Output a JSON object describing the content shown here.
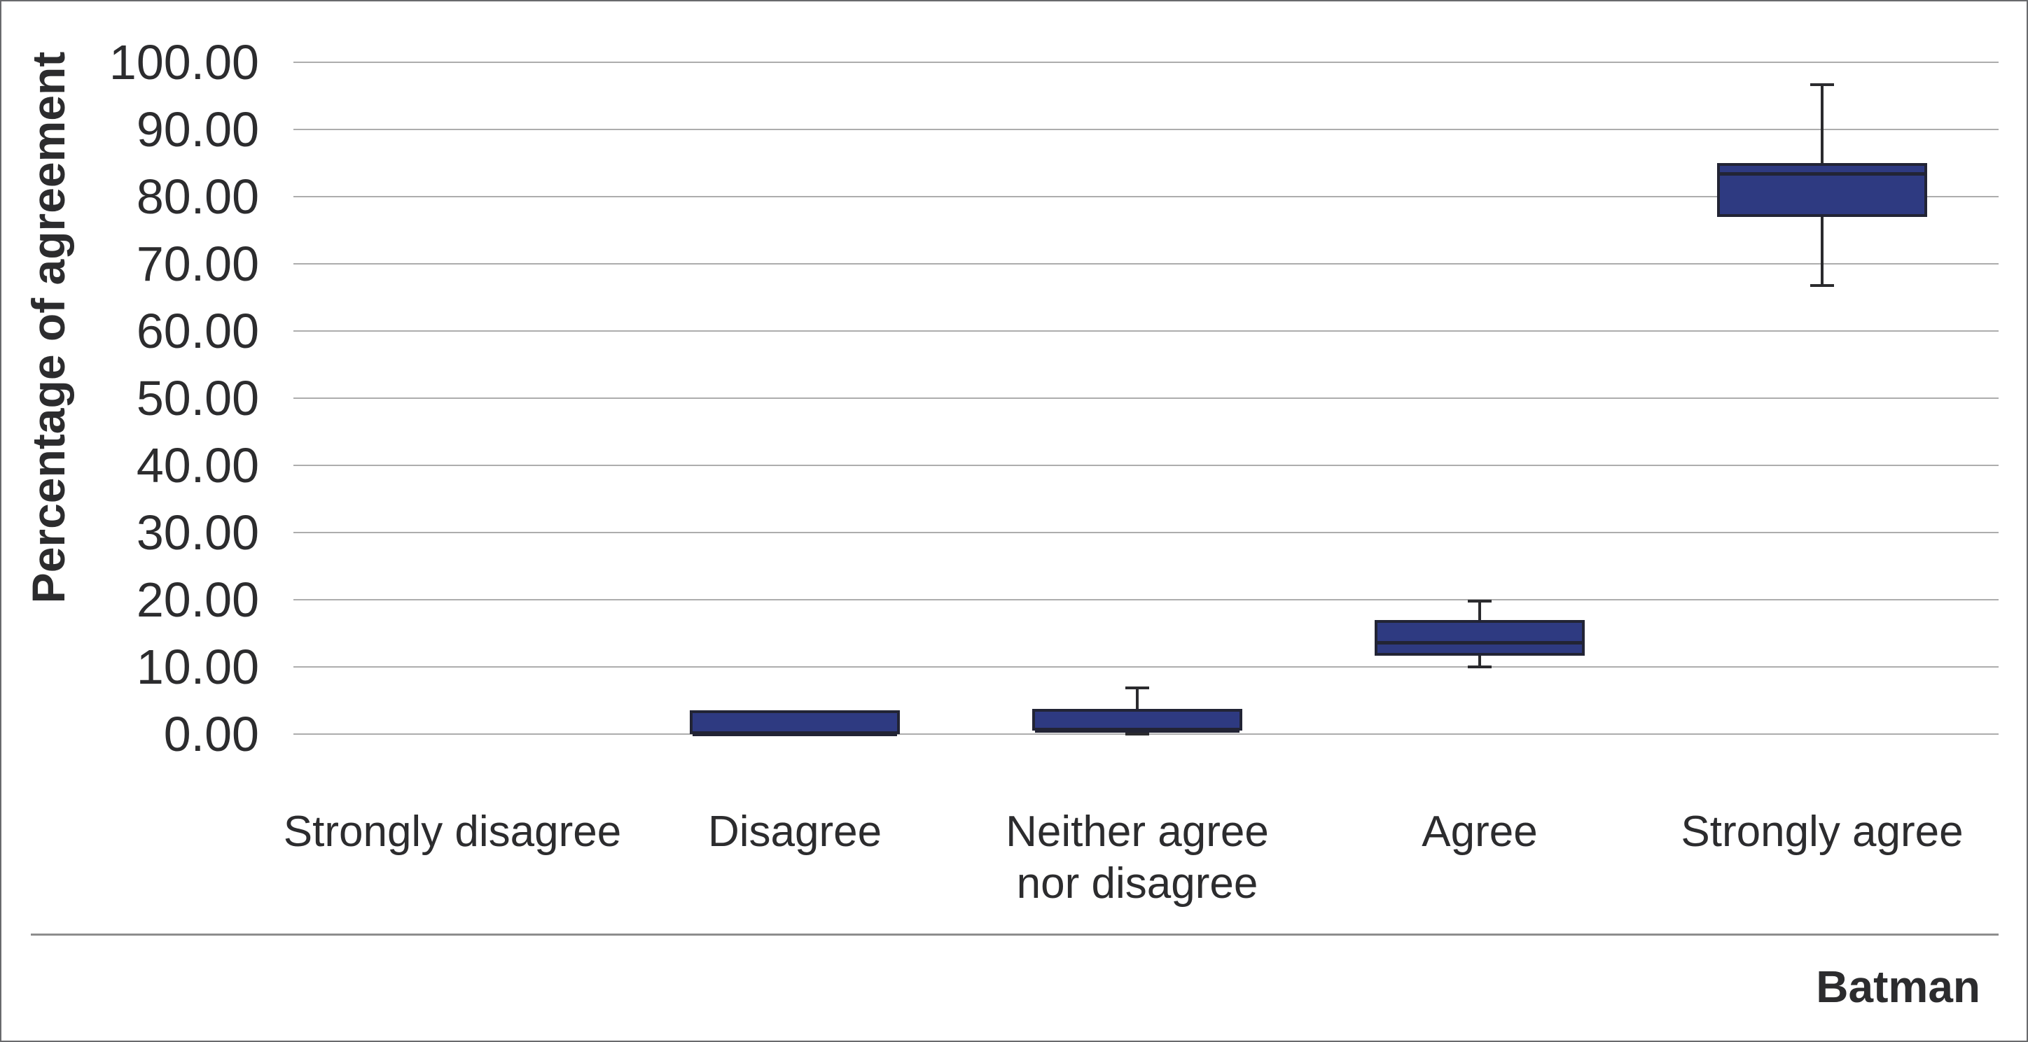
{
  "chart_data": {
    "type": "boxplot",
    "title": "",
    "ylabel": "Percentage of agreement",
    "series_label": "Batman",
    "ylim": [
      0,
      100
    ],
    "grid": true,
    "legend": "none",
    "yticks": [
      {
        "value": 0,
        "label": "0.00"
      },
      {
        "value": 10,
        "label": "10.00"
      },
      {
        "value": 20,
        "label": "20.00"
      },
      {
        "value": 30,
        "label": "30.00"
      },
      {
        "value": 40,
        "label": "40.00"
      },
      {
        "value": 50,
        "label": "50.00"
      },
      {
        "value": 60,
        "label": "60.00"
      },
      {
        "value": 70,
        "label": "70.00"
      },
      {
        "value": 80,
        "label": "80.00"
      },
      {
        "value": 90,
        "label": "90.00"
      },
      {
        "value": 100,
        "label": "100.00"
      }
    ],
    "categories": [
      "Strongly disagree",
      "Disagree",
      "Neither agree\nnor disagree",
      "Agree",
      "Strongly agree"
    ],
    "series": [
      {
        "name": "Strongly disagree",
        "min": 0,
        "q1": 0,
        "median": 0,
        "q3": 0,
        "max": 0
      },
      {
        "name": "Disagree",
        "min": 0,
        "q1": 0,
        "median": 0,
        "q3": 3.5,
        "max": 3.5
      },
      {
        "name": "Neither agree nor disagree",
        "min": 0,
        "q1": 0.5,
        "median": 0.5,
        "q3": 3.8,
        "max": 6.9
      },
      {
        "name": "Agree",
        "min": 10,
        "q1": 11.7,
        "median": 13.6,
        "q3": 17,
        "max": 19.8
      },
      {
        "name": "Strongly agree",
        "min": 66.8,
        "q1": 77,
        "median": 83.4,
        "q3": 85,
        "max": 96.7
      }
    ]
  },
  "colors": {
    "box_fill": "#2e3a81",
    "box_border": "#222435",
    "whisker": "#2b2b2e",
    "gridline": "#adadad",
    "separator": "#8d8d8d",
    "text": "#2c2c2e",
    "frame": "#696a6d",
    "background": "#ffffff"
  }
}
